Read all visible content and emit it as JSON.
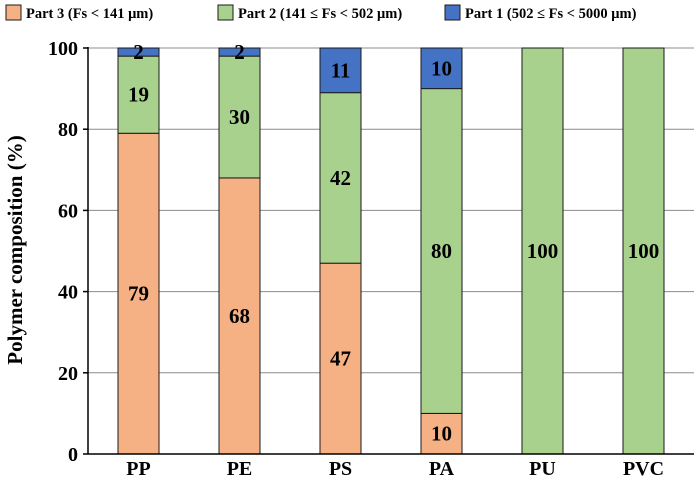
{
  "chart_data": {
    "type": "bar",
    "stacked": true,
    "orientation": "vertical",
    "categories": [
      "PP",
      "PE",
      "PS",
      "PA",
      "PU",
      "PVC"
    ],
    "series": [
      {
        "name": "Part 3 (Fs < 141 μm)",
        "color": "#F5B184",
        "values": [
          79,
          68,
          47,
          10,
          0,
          0
        ],
        "labels": [
          "79",
          "68",
          "47",
          "10",
          "",
          ""
        ]
      },
      {
        "name": "Part 2 (141 ≤  Fs < 502 μm)",
        "color": "#A9D18E",
        "values": [
          19,
          30,
          42,
          80,
          100,
          100
        ],
        "labels": [
          "19",
          "30",
          "42",
          "80",
          "100",
          "100"
        ]
      },
      {
        "name": "Part 1 (502 ≤  Fs < 5000 μm)",
        "color": "#4472C4",
        "values": [
          2,
          2,
          11,
          10,
          0,
          0
        ],
        "labels": [
          "2",
          "2",
          "11",
          "10",
          "",
          ""
        ]
      }
    ],
    "ylabel": "Polymer composition (%)",
    "xlabel": "",
    "ylim": [
      0,
      100
    ],
    "yticks": [
      0,
      20,
      40,
      60,
      80,
      100
    ],
    "grid": true,
    "legend": "top"
  }
}
